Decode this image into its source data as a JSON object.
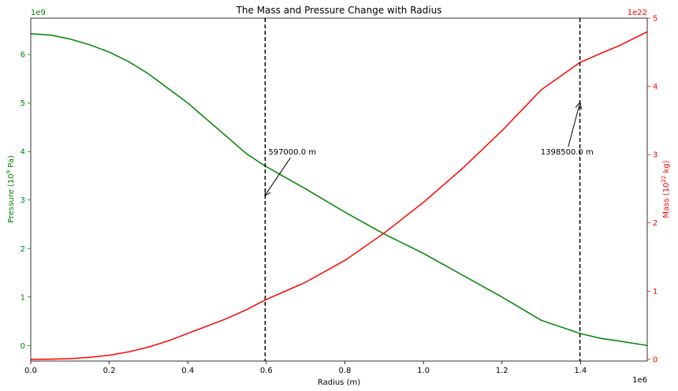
{
  "chart_data": {
    "type": "line",
    "title": "The Mass and Pressure Change with Radius",
    "xlabel": "Radius (m)",
    "x_offset_text": "1e6",
    "xlim": [
      0,
      1570000
    ],
    "xticks": [
      0,
      200000,
      400000,
      600000,
      800000,
      1000000,
      1200000,
      1400000
    ],
    "xtick_labels": [
      "0.0",
      "0.2",
      "0.4",
      "0.6",
      "0.8",
      "1.0",
      "1.2",
      "1.4"
    ],
    "left_axis": {
      "label_prefix": "Pressure (10",
      "label_exp": "9",
      "label_suffix": " Pa)",
      "offset_text": "1e9",
      "color": "#008000",
      "ylim": [
        -320000000,
        6750000000
      ],
      "ticks": [
        0,
        1000000000,
        2000000000,
        3000000000,
        4000000000,
        5000000000,
        6000000000
      ],
      "tick_labels": [
        "0",
        "1",
        "2",
        "3",
        "4",
        "5",
        "6"
      ]
    },
    "right_axis": {
      "label_prefix": "Mass (10",
      "label_exp": "22",
      "label_suffix": " kg)",
      "offset_text": "1e22",
      "color": "#ff0000",
      "ylim": [
        -2.5e+20,
        5e+22
      ],
      "ticks": [
        0,
        1e+22,
        2e+22,
        3e+22,
        4e+22,
        5e+22
      ],
      "tick_labels": [
        "0",
        "1",
        "2",
        "3",
        "4",
        "5"
      ]
    },
    "series": [
      {
        "axis": "left",
        "color": "#008000",
        "x": [
          0,
          50000,
          100000,
          150000,
          200000,
          250000,
          300000,
          350000,
          400000,
          450000,
          500000,
          550000,
          597000,
          700000,
          800000,
          900000,
          1000000,
          1100000,
          1200000,
          1300000,
          1398500,
          1450000,
          1500000,
          1570000
        ],
        "y": [
          6430000000,
          6400000000,
          6320000000,
          6200000000,
          6050000000,
          5850000000,
          5600000000,
          5300000000,
          5000000000,
          4650000000,
          4300000000,
          3950000000,
          3700000000,
          3230000000,
          2750000000,
          2300000000,
          1900000000,
          1450000000,
          1000000000,
          520000000,
          250000000,
          150000000,
          90000000,
          0
        ]
      },
      {
        "axis": "right",
        "color": "#ff0000",
        "x": [
          0,
          50000,
          100000,
          150000,
          200000,
          250000,
          300000,
          350000,
          400000,
          450000,
          500000,
          550000,
          597000,
          700000,
          800000,
          900000,
          1000000,
          1100000,
          1200000,
          1300000,
          1398500,
          1450000,
          1500000,
          1570000
        ],
        "y": [
          0,
          2e+19,
          1e+20,
          3e+20,
          6e+20,
          1.1e+21,
          1.8e+21,
          2.7e+21,
          3.8e+21,
          4.9e+21,
          6e+21,
          7.3e+21,
          8.7e+21,
          1.13e+22,
          1.45e+22,
          1.85e+22,
          2.3e+22,
          2.8e+22,
          3.35e+22,
          3.95e+22,
          4.35e+22,
          4.48e+22,
          4.6e+22,
          4.8e+22
        ]
      }
    ],
    "vlines": [
      597000,
      1398500
    ],
    "annotations": [
      {
        "text": "597000.0 m",
        "x": 597000,
        "y": 3100000000,
        "text_x": 605000,
        "text_y": 4000000000,
        "axis": "left"
      },
      {
        "text": "1398500.0 m",
        "x": 1398500,
        "y": 5000000000,
        "text_x": 1298500,
        "text_y": 4000000000,
        "axis": "left"
      }
    ],
    "grid": false
  }
}
